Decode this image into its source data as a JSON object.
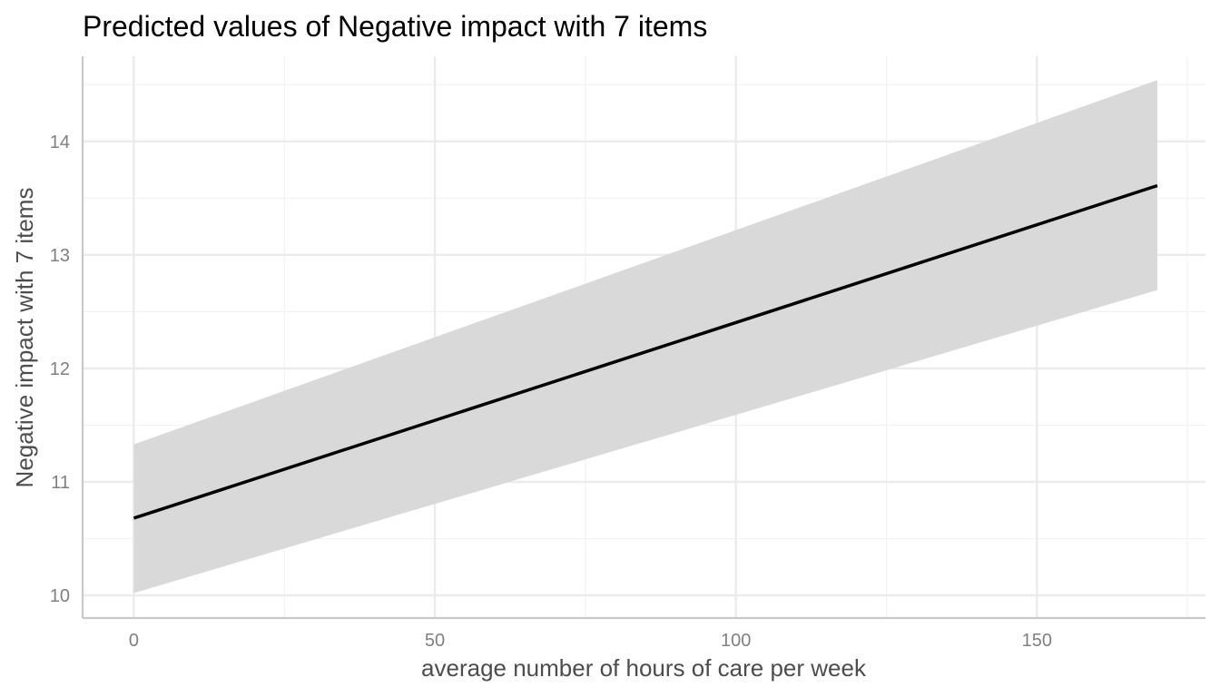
{
  "chart_data": {
    "type": "line",
    "title": "Predicted values of Negative impact with 7 items",
    "xlabel": "average number of hours of care per week",
    "ylabel": "Negative impact with 7 items",
    "x_ticks": [
      "0",
      "50",
      "100",
      "150"
    ],
    "y_ticks": [
      "10",
      "11",
      "12",
      "13",
      "14"
    ],
    "xlim": [
      -8.5,
      178
    ],
    "ylim": [
      9.8,
      14.75
    ],
    "grid": true,
    "legend": "none",
    "series": [
      {
        "x": [
          0,
          170
        ],
        "y": [
          10.68,
          13.61
        ],
        "ci_low": [
          10.02,
          12.69
        ],
        "ci_high": [
          11.33,
          14.54
        ],
        "color": "#000000",
        "ribbon_color": "#d9d9d9"
      }
    ]
  }
}
